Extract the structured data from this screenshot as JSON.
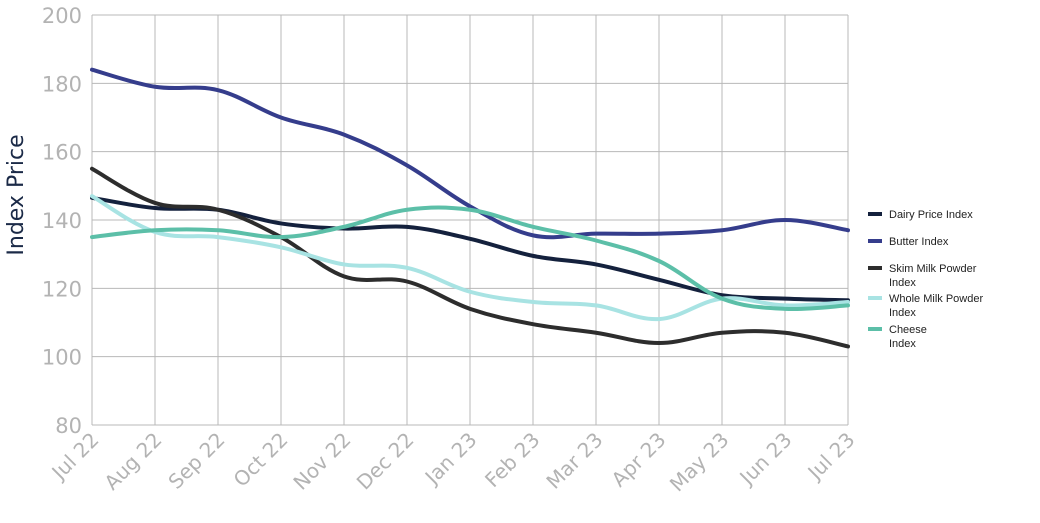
{
  "chart_data": {
    "type": "line",
    "title": "",
    "xlabel": "",
    "ylabel": "Index Price",
    "ylim": [
      80,
      200
    ],
    "y_ticks": [
      80,
      100,
      120,
      140,
      160,
      180,
      200
    ],
    "grid": true,
    "legend_position": "right",
    "categories": [
      "Jul 22",
      "Aug 22",
      "Sep 22",
      "Oct 22",
      "Nov 22",
      "Dec 22",
      "Jan 23",
      "Feb 23",
      "Mar 23",
      "Apr 23",
      "May 23",
      "Jun 23",
      "Jul 23"
    ],
    "series": [
      {
        "name": "Dairy Price Index",
        "color": "#14213d",
        "values": [
          146.5,
          143.5,
          143,
          139,
          137.5,
          138,
          134.5,
          129.5,
          127,
          122.5,
          118,
          117,
          116.5
        ]
      },
      {
        "name": "Butter Index",
        "color": "#353d8c",
        "values": [
          184,
          179,
          178,
          170,
          165,
          156,
          144,
          135.5,
          136,
          136,
          137,
          140,
          137
        ]
      },
      {
        "name": "Skim Milk Powder Index",
        "color": "#2d2d2d",
        "values": [
          155,
          145,
          143,
          135,
          123.5,
          122,
          114,
          109.5,
          107,
          104,
          107,
          107,
          103
        ]
      },
      {
        "name": "Whole Milk Powder Index",
        "color": "#a8e3e3",
        "values": [
          147,
          136.5,
          135,
          132,
          127,
          126,
          119,
          116,
          115,
          111,
          117,
          115,
          116
        ]
      },
      {
        "name": "Cheese Index",
        "color": "#5cbfa8",
        "values": [
          135,
          137,
          137,
          135,
          138,
          143,
          143,
          138,
          134,
          128,
          117,
          114,
          115
        ]
      }
    ]
  }
}
